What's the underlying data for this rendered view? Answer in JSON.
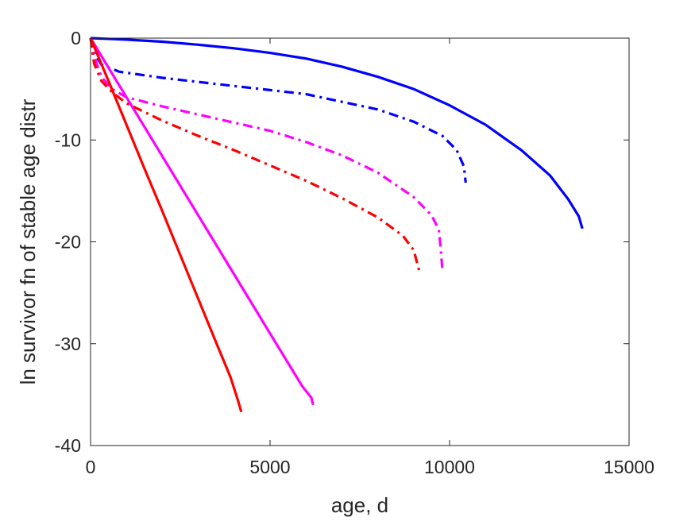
{
  "chart_data": {
    "type": "line",
    "title": "",
    "xlabel": "age, d",
    "ylabel": "ln survivor fn of stable age distr",
    "xlim": [
      0,
      15000
    ],
    "ylim": [
      -40,
      0
    ],
    "xticks": [
      0,
      5000,
      10000,
      15000
    ],
    "xtick_labels": [
      "0",
      "5000",
      "10000",
      "15000"
    ],
    "yticks": [
      0,
      -10,
      -20,
      -30,
      -40
    ],
    "ytick_labels": [
      "0",
      "-10",
      "-20",
      "-30",
      "-40"
    ],
    "grid": false,
    "legend": "none",
    "series": [
      {
        "color": "#0000ff",
        "style": "solid",
        "points": [
          [
            0,
            0
          ],
          [
            1000,
            -0.15
          ],
          [
            2000,
            -0.35
          ],
          [
            3000,
            -0.65
          ],
          [
            4000,
            -1.0
          ],
          [
            5000,
            -1.45
          ],
          [
            6000,
            -2.0
          ],
          [
            7000,
            -2.8
          ],
          [
            8000,
            -3.8
          ],
          [
            9000,
            -5.0
          ],
          [
            10000,
            -6.6
          ],
          [
            11000,
            -8.5
          ],
          [
            12000,
            -11.0
          ],
          [
            12800,
            -13.5
          ],
          [
            13300,
            -15.8
          ],
          [
            13600,
            -17.5
          ],
          [
            13700,
            -18.7
          ]
        ]
      },
      {
        "color": "#0000ff",
        "style": "dashdot",
        "points": [
          [
            0,
            0
          ],
          [
            100,
            -1.5
          ],
          [
            300,
            -2.6
          ],
          [
            800,
            -3.3
          ],
          [
            2000,
            -3.9
          ],
          [
            4000,
            -4.7
          ],
          [
            6000,
            -5.5
          ],
          [
            8000,
            -7.0
          ],
          [
            9000,
            -8.2
          ],
          [
            9800,
            -9.6
          ],
          [
            10200,
            -11.0
          ],
          [
            10400,
            -12.6
          ],
          [
            10450,
            -14.2
          ]
        ]
      },
      {
        "color": "#ff00ff",
        "style": "solid",
        "points": [
          [
            0,
            0
          ],
          [
            1000,
            -5.8
          ],
          [
            2000,
            -11.6
          ],
          [
            3000,
            -17.4
          ],
          [
            4000,
            -23.2
          ],
          [
            5000,
            -29.0
          ],
          [
            5900,
            -34.2
          ],
          [
            6150,
            -35.3
          ],
          [
            6200,
            -36.0
          ]
        ]
      },
      {
        "color": "#ff00ff",
        "style": "dashdot",
        "points": [
          [
            0,
            0
          ],
          [
            100,
            -1.8
          ],
          [
            300,
            -3.8
          ],
          [
            600,
            -5.0
          ],
          [
            1000,
            -5.8
          ],
          [
            2000,
            -6.7
          ],
          [
            3000,
            -7.5
          ],
          [
            4000,
            -8.3
          ],
          [
            5000,
            -9.1
          ],
          [
            6000,
            -10.2
          ],
          [
            7000,
            -11.5
          ],
          [
            8000,
            -13.2
          ],
          [
            9000,
            -15.6
          ],
          [
            9500,
            -17.4
          ],
          [
            9700,
            -18.8
          ],
          [
            9750,
            -20.5
          ],
          [
            9800,
            -22.8
          ]
        ]
      },
      {
        "color": "#ff0000",
        "style": "solid",
        "points": [
          [
            0,
            0
          ],
          [
            500,
            -4.2
          ],
          [
            1000,
            -8.5
          ],
          [
            1500,
            -12.8
          ],
          [
            2000,
            -17.0
          ],
          [
            2500,
            -21.3
          ],
          [
            3000,
            -25.6
          ],
          [
            3500,
            -29.9
          ],
          [
            3900,
            -33.3
          ],
          [
            4100,
            -35.5
          ],
          [
            4200,
            -36.7
          ]
        ]
      },
      {
        "color": "#ff0000",
        "style": "dashdot",
        "points": [
          [
            0,
            0
          ],
          [
            100,
            -2.5
          ],
          [
            300,
            -4.2
          ],
          [
            600,
            -5.3
          ],
          [
            1000,
            -6.4
          ],
          [
            2000,
            -8.1
          ],
          [
            3000,
            -9.6
          ],
          [
            4000,
            -11.0
          ],
          [
            5000,
            -12.5
          ],
          [
            6000,
            -14.0
          ],
          [
            7000,
            -15.7
          ],
          [
            8000,
            -17.6
          ],
          [
            8700,
            -19.4
          ],
          [
            9000,
            -20.8
          ],
          [
            9150,
            -22.8
          ]
        ]
      }
    ]
  }
}
